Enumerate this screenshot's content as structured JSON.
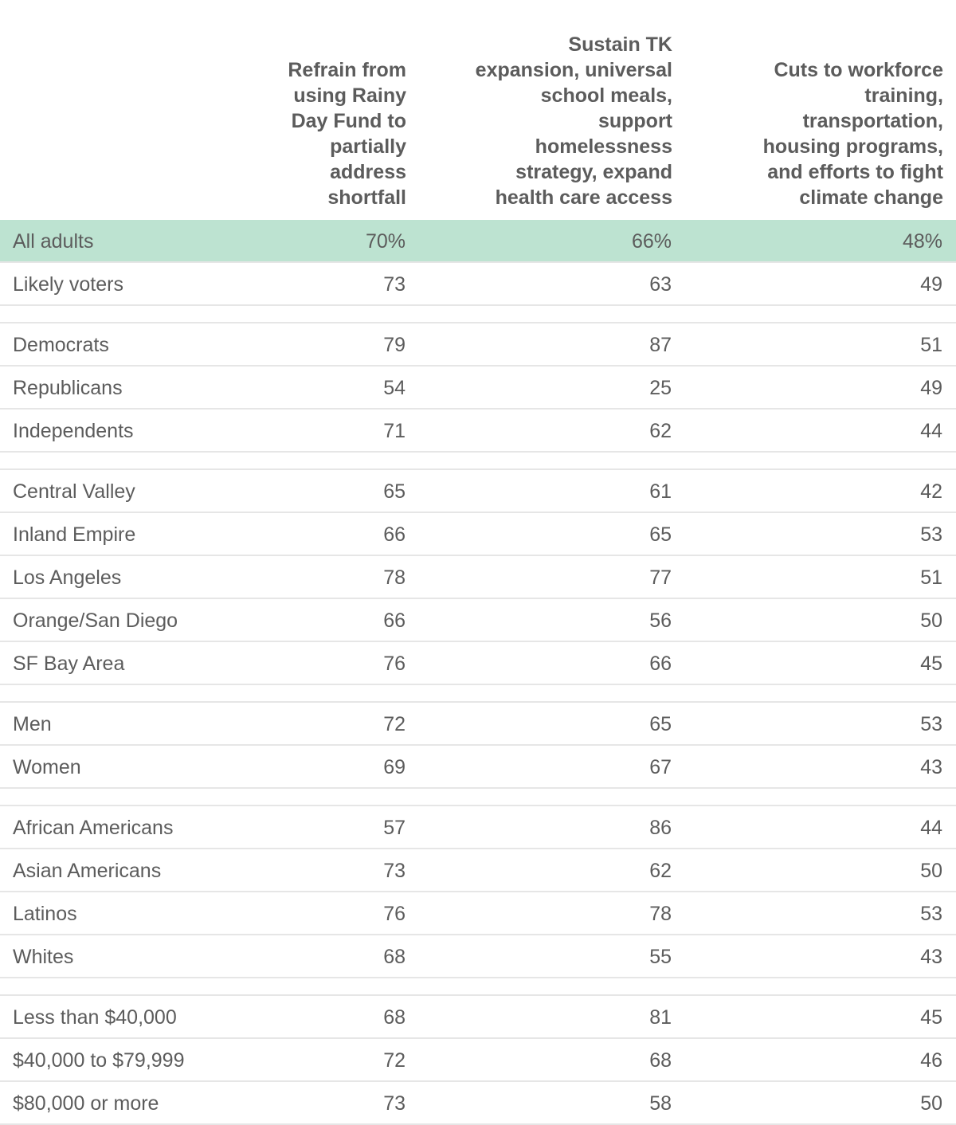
{
  "chart_data": {
    "type": "table",
    "columns": [
      "Refrain from using Rainy Day Fund to partially address shortfall",
      "Sustain TK expansion, universal school meals, support homelessness strategy, expand health care access",
      "Cuts to workforce training, transportation, housing programs, and efforts to fight climate change"
    ],
    "header_lines": [
      [
        "Refrain from",
        "using Rainy",
        "Day Fund to",
        "partially",
        "address",
        "shortfall"
      ],
      [
        "Sustain TK",
        "expansion, universal",
        "school meals,",
        "support",
        "homelessness",
        "strategy, expand",
        "health care access"
      ],
      [
        "Cuts to workforce",
        "training,",
        "transportation,",
        "housing programs,",
        "and efforts to fight",
        "climate change"
      ]
    ],
    "highlight_color": "#bde3d1",
    "groups": [
      {
        "rows": [
          {
            "label": "All adults",
            "display": [
              "70%",
              "66%",
              "48%"
            ],
            "values": [
              70,
              66,
              48
            ],
            "highlight": true
          },
          {
            "label": "Likely voters",
            "display": [
              "73",
              "63",
              "49"
            ],
            "values": [
              73,
              63,
              49
            ]
          }
        ]
      },
      {
        "rows": [
          {
            "label": "Democrats",
            "display": [
              "79",
              "87",
              "51"
            ],
            "values": [
              79,
              87,
              51
            ]
          },
          {
            "label": "Republicans",
            "display": [
              "54",
              "25",
              "49"
            ],
            "values": [
              54,
              25,
              49
            ]
          },
          {
            "label": "Independents",
            "display": [
              "71",
              "62",
              "44"
            ],
            "values": [
              71,
              62,
              44
            ]
          }
        ]
      },
      {
        "rows": [
          {
            "label": "Central Valley",
            "display": [
              "65",
              "61",
              "42"
            ],
            "values": [
              65,
              61,
              42
            ]
          },
          {
            "label": "Inland Empire",
            "display": [
              "66",
              "65",
              "53"
            ],
            "values": [
              66,
              65,
              53
            ]
          },
          {
            "label": "Los Angeles",
            "display": [
              "78",
              "77",
              "51"
            ],
            "values": [
              78,
              77,
              51
            ]
          },
          {
            "label": "Orange/San Diego",
            "display": [
              "66",
              "56",
              "50"
            ],
            "values": [
              66,
              56,
              50
            ]
          },
          {
            "label": "SF Bay Area",
            "display": [
              "76",
              "66",
              "45"
            ],
            "values": [
              76,
              66,
              45
            ]
          }
        ]
      },
      {
        "rows": [
          {
            "label": "Men",
            "display": [
              "72",
              "65",
              "53"
            ],
            "values": [
              72,
              65,
              53
            ]
          },
          {
            "label": "Women",
            "display": [
              "69",
              "67",
              "43"
            ],
            "values": [
              69,
              67,
              43
            ]
          }
        ]
      },
      {
        "rows": [
          {
            "label": "African Americans",
            "display": [
              "57",
              "86",
              "44"
            ],
            "values": [
              57,
              86,
              44
            ]
          },
          {
            "label": "Asian Americans",
            "display": [
              "73",
              "62",
              "50"
            ],
            "values": [
              73,
              62,
              50
            ]
          },
          {
            "label": "Latinos",
            "display": [
              "76",
              "78",
              "53"
            ],
            "values": [
              76,
              78,
              53
            ]
          },
          {
            "label": "Whites",
            "display": [
              "68",
              "55",
              "43"
            ],
            "values": [
              68,
              55,
              43
            ]
          }
        ]
      },
      {
        "rows": [
          {
            "label": "Less than $40,000",
            "display": [
              "68",
              "81",
              "45"
            ],
            "values": [
              68,
              81,
              45
            ]
          },
          {
            "label": "$40,000 to $79,999",
            "display": [
              "72",
              "68",
              "46"
            ],
            "values": [
              72,
              68,
              46
            ]
          },
          {
            "label": "$80,000 or more",
            "display": [
              "73",
              "58",
              "50"
            ],
            "values": [
              73,
              58,
              50
            ]
          }
        ]
      }
    ]
  }
}
